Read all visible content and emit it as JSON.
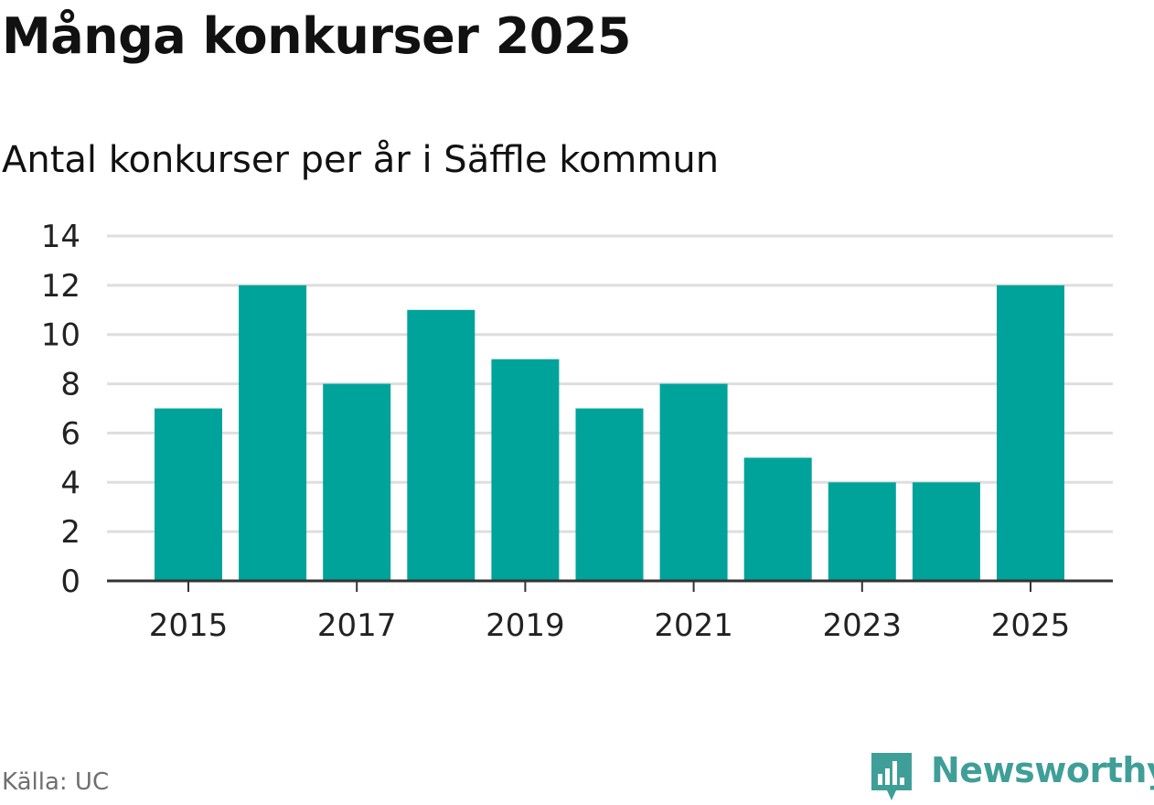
{
  "title": "Många konkurser 2025",
  "subtitle": "Antal konkurser per år i Säffle kommun",
  "source": "Källa: UC",
  "brand": {
    "name": "Newsworthy",
    "color": "#3f9f98",
    "icon": "bar-chart-speech-bubble-icon"
  },
  "colors": {
    "bar": "#00a39a",
    "grid": "#dedede",
    "axis": "#333333",
    "text": "#222222"
  },
  "chart_data": {
    "type": "bar",
    "title": "Många konkurser 2025",
    "subtitle": "Antal konkurser per år i Säffle kommun",
    "xlabel": "",
    "ylabel": "",
    "categories": [
      "2015",
      "2016",
      "2017",
      "2018",
      "2019",
      "2020",
      "2021",
      "2022",
      "2023",
      "2024",
      "2025"
    ],
    "values": [
      7,
      12,
      8,
      11,
      9,
      7,
      8,
      5,
      4,
      4,
      12
    ],
    "x_tick_labels": [
      "2015",
      "2017",
      "2019",
      "2021",
      "2023",
      "2025"
    ],
    "y_ticks": [
      0,
      2,
      4,
      6,
      8,
      10,
      12,
      14
    ],
    "ylim": [
      0,
      14
    ],
    "grid": true
  }
}
